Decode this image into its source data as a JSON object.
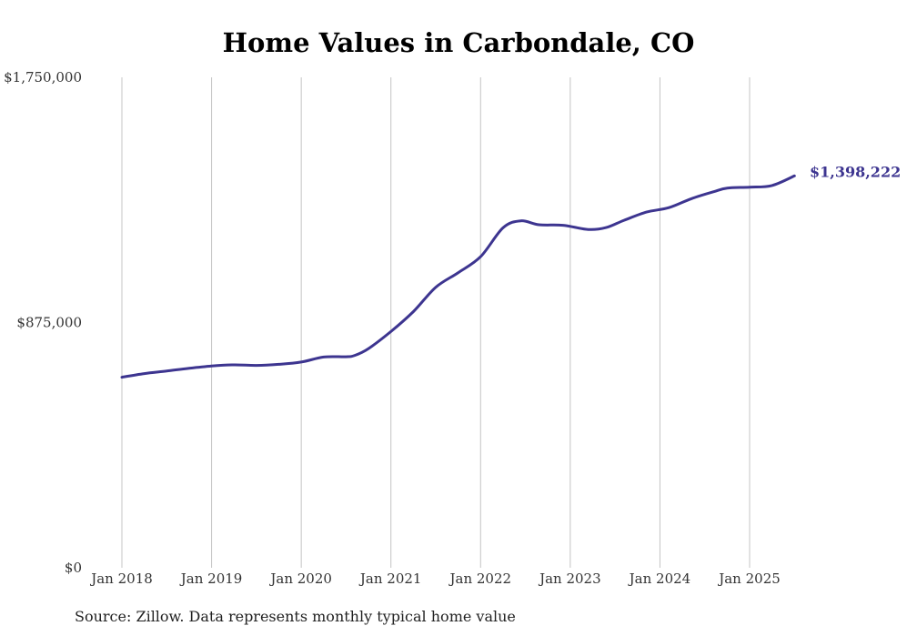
{
  "chart_data": {
    "type": "line",
    "title": "Home Values in Carbondale, CO",
    "source": "Source: Zillow. Data represents monthly typical home value",
    "xlabel": "",
    "ylabel": "",
    "ylim": [
      0,
      1750000
    ],
    "y_ticks": [
      {
        "value": 0,
        "label": "$0"
      },
      {
        "value": 875000,
        "label": "$875,000"
      },
      {
        "value": 1750000,
        "label": "$1,750,000"
      }
    ],
    "x_ticks": [
      {
        "value": 2018.0,
        "label": "Jan 2018"
      },
      {
        "value": 2019.0,
        "label": "Jan 2019"
      },
      {
        "value": 2020.0,
        "label": "Jan 2020"
      },
      {
        "value": 2021.0,
        "label": "Jan 2021"
      },
      {
        "value": 2022.0,
        "label": "Jan 2022"
      },
      {
        "value": 2023.0,
        "label": "Jan 2023"
      },
      {
        "value": 2024.0,
        "label": "Jan 2024"
      },
      {
        "value": 2025.0,
        "label": "Jan 2025"
      }
    ],
    "grid": "vertical",
    "line_color": "#3d3590",
    "end_label": "$1,398,222",
    "series": [
      {
        "points": [
          [
            2018.0,
            680000
          ],
          [
            2018.25,
            693000
          ],
          [
            2018.5,
            702000
          ],
          [
            2018.75,
            712000
          ],
          [
            2019.0,
            720000
          ],
          [
            2019.25,
            724000
          ],
          [
            2019.5,
            722000
          ],
          [
            2019.75,
            726000
          ],
          [
            2020.0,
            734000
          ],
          [
            2020.25,
            752000
          ],
          [
            2020.5,
            753000
          ],
          [
            2020.6,
            758000
          ],
          [
            2020.75,
            782000
          ],
          [
            2021.0,
            843000
          ],
          [
            2021.25,
            914000
          ],
          [
            2021.5,
            1001000
          ],
          [
            2021.75,
            1053000
          ],
          [
            2022.0,
            1110000
          ],
          [
            2022.25,
            1213000
          ],
          [
            2022.45,
            1238000
          ],
          [
            2022.65,
            1224000
          ],
          [
            2022.92,
            1222000
          ],
          [
            2023.2,
            1207000
          ],
          [
            2023.4,
            1214000
          ],
          [
            2023.6,
            1240000
          ],
          [
            2023.85,
            1269000
          ],
          [
            2024.1,
            1285000
          ],
          [
            2024.35,
            1317000
          ],
          [
            2024.6,
            1342000
          ],
          [
            2024.75,
            1355000
          ],
          [
            2025.0,
            1358000
          ],
          [
            2025.25,
            1364000
          ],
          [
            2025.5,
            1398222
          ]
        ]
      }
    ]
  }
}
